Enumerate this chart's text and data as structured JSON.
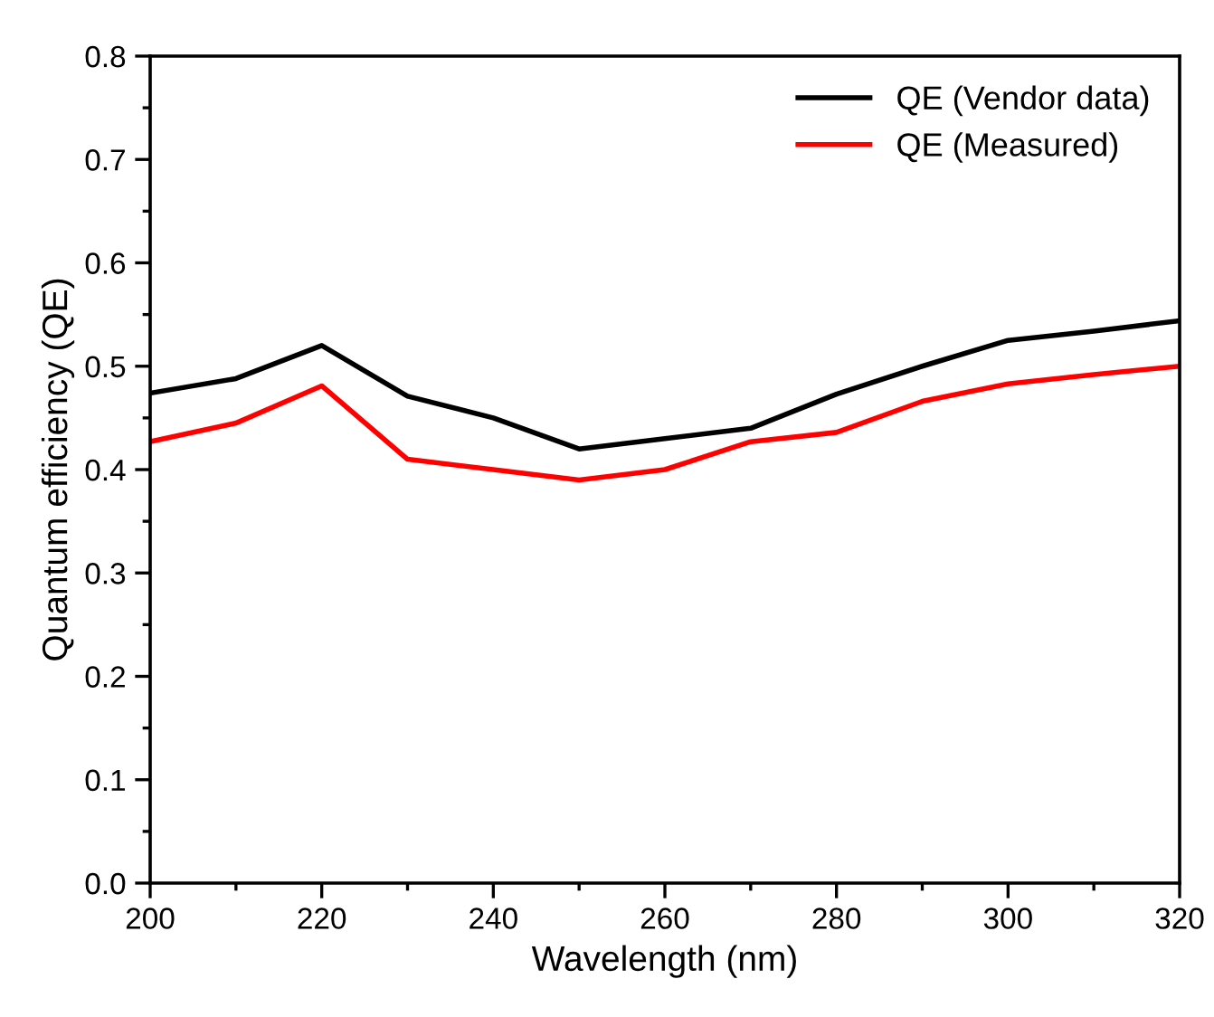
{
  "chart_data": {
    "type": "line",
    "xlabel": "Wavelength (nm)",
    "ylabel": "Quantum efficiency (QE)",
    "x": [
      200,
      210,
      220,
      230,
      240,
      250,
      260,
      270,
      280,
      290,
      300,
      310,
      320
    ],
    "series": [
      {
        "name": "QE (Vendor data)",
        "color": "#000000",
        "values": [
          0.474,
          0.488,
          0.52,
          0.471,
          0.45,
          0.42,
          0.43,
          0.44,
          0.473,
          0.5,
          0.525,
          0.534,
          0.544
        ]
      },
      {
        "name": "QE (Measured)",
        "color": "#ff0000",
        "values": [
          0.427,
          0.445,
          0.481,
          0.41,
          0.4,
          0.39,
          0.4,
          0.427,
          0.436,
          0.466,
          0.483,
          0.492,
          0.5
        ]
      }
    ],
    "xlim": [
      200,
      320
    ],
    "ylim": [
      0,
      0.8
    ],
    "xticks": [
      200,
      {
        "value": 210,
        "label": null
      },
      220,
      {
        "value": 230,
        "label": null
      },
      240,
      {
        "value": 250,
        "label": null
      },
      260,
      {
        "value": 270,
        "label": null
      },
      280,
      {
        "value": 290,
        "label": null
      },
      300,
      {
        "value": 310,
        "label": null
      },
      320
    ],
    "yticks": [
      {
        "value": 0,
        "label": "0.0"
      },
      {
        "value": 0.05,
        "label": null
      },
      0.1,
      {
        "value": 0.15,
        "label": null
      },
      0.2,
      {
        "value": 0.25,
        "label": null
      },
      0.3,
      {
        "value": 0.35,
        "label": null
      },
      0.4,
      {
        "value": 0.45,
        "label": null
      },
      0.5,
      {
        "value": 0.55,
        "label": null
      },
      0.6,
      {
        "value": 0.65,
        "label": null
      },
      0.7,
      {
        "value": 0.75,
        "label": null
      },
      0.8
    ],
    "grid": false,
    "legend": "top right",
    "marker": "none",
    "line_style": "solid"
  }
}
